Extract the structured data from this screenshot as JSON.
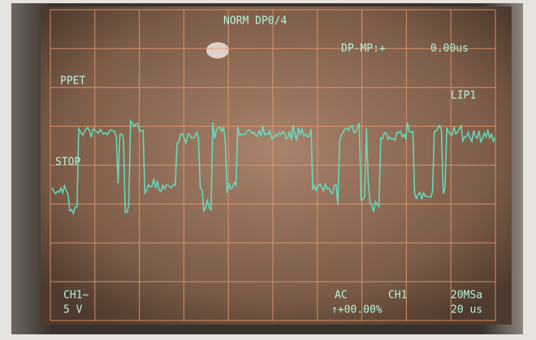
{
  "screen": {
    "top_center": "NORM DP0/4",
    "top_right_mode": "DP-MP:+",
    "top_right_time": "0.00us",
    "left_label": "PPET",
    "right_label": "LIP1",
    "trace_label": "STOP",
    "bottom_left_channel": "CH1~",
    "bottom_left_scale": "5 V",
    "bottom_coupling": "AC",
    "bottom_channel": "CH1",
    "bottom_rate": "20MSa",
    "bottom_offset": "↑+00.00%",
    "bottom_timebase": "20 us"
  }
}
